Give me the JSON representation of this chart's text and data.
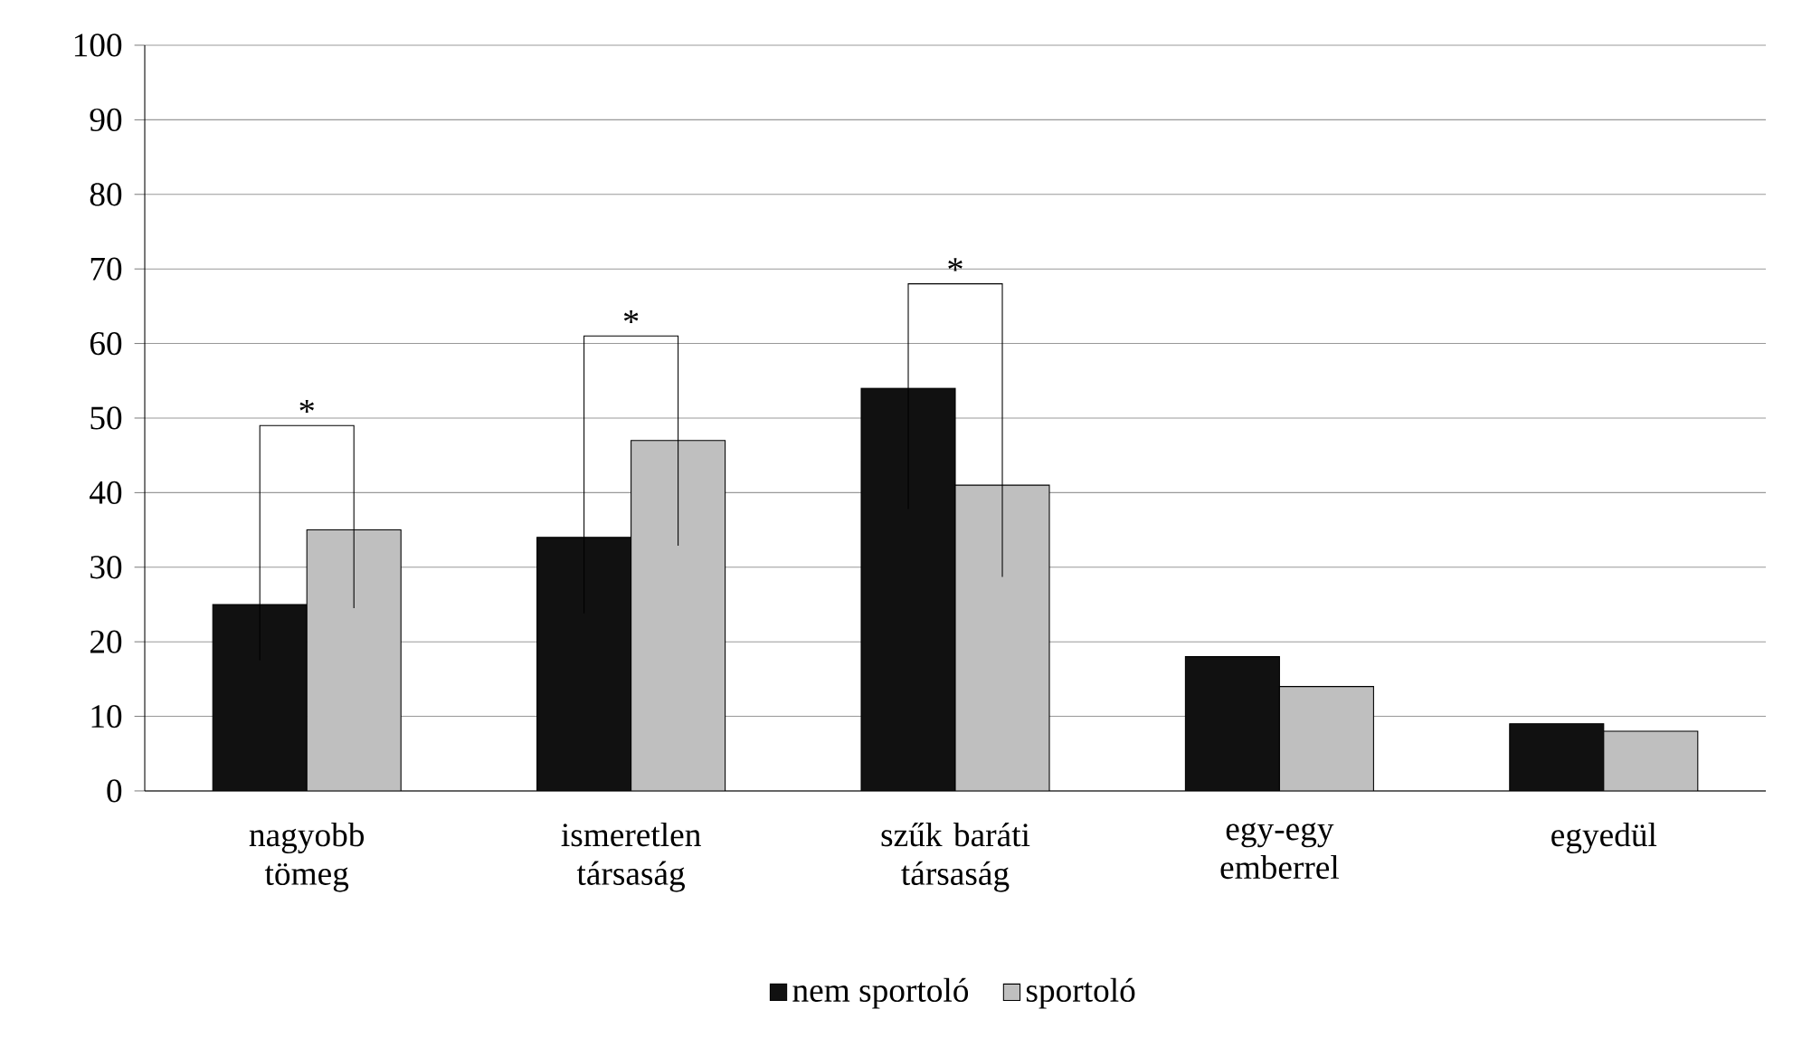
{
  "chart_data": {
    "type": "bar",
    "categories": [
      "nagyobb tömeg",
      "ismeretlen társaság",
      "szűk baráti társaság",
      "egy-egy emberrel",
      "egyedül"
    ],
    "series": [
      {
        "name": "nem sportoló",
        "color": "#111111",
        "values": [
          25,
          34,
          54,
          18,
          9
        ]
      },
      {
        "name": "sportoló",
        "color": "#bfbfbf",
        "values": [
          35,
          47,
          41,
          14,
          8
        ]
      }
    ],
    "ylim": [
      0,
      100
    ],
    "yticks": [
      0,
      10,
      20,
      30,
      40,
      50,
      60,
      70,
      80,
      90,
      100
    ],
    "grid": "y",
    "legend": "bottom",
    "annotations": [
      "*",
      "*",
      "*"
    ]
  }
}
